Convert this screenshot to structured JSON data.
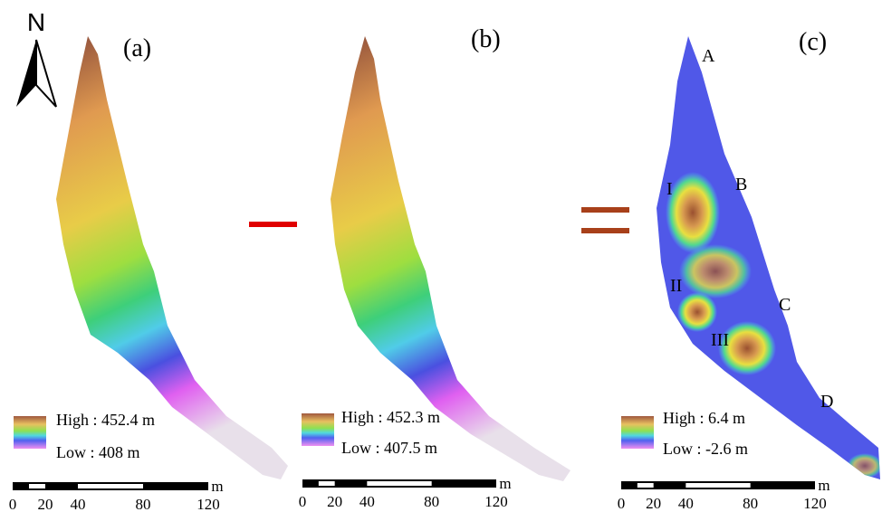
{
  "north": "N",
  "panels": [
    {
      "label": "(a)",
      "legend": {
        "high": "High : 452.4 m",
        "low": "Low : 408 m"
      },
      "scale": {
        "ticks": [
          0,
          20,
          40,
          80,
          120
        ],
        "unit": "m"
      }
    },
    {
      "label": "(b)",
      "legend": {
        "high": "High : 452.3 m",
        "low": "Low : 407.5 m"
      },
      "scale": {
        "ticks": [
          0,
          20,
          40,
          80,
          120
        ],
        "unit": "m"
      }
    },
    {
      "label": "(c)",
      "legend": {
        "high": "High : 6.4 m",
        "low": "Low : -2.6 m"
      },
      "scale": {
        "ticks": [
          0,
          20,
          40,
          80,
          120
        ],
        "unit": "m"
      },
      "annotations": [
        "A",
        "B",
        "C",
        "D",
        "I",
        "II",
        "III"
      ]
    }
  ]
}
